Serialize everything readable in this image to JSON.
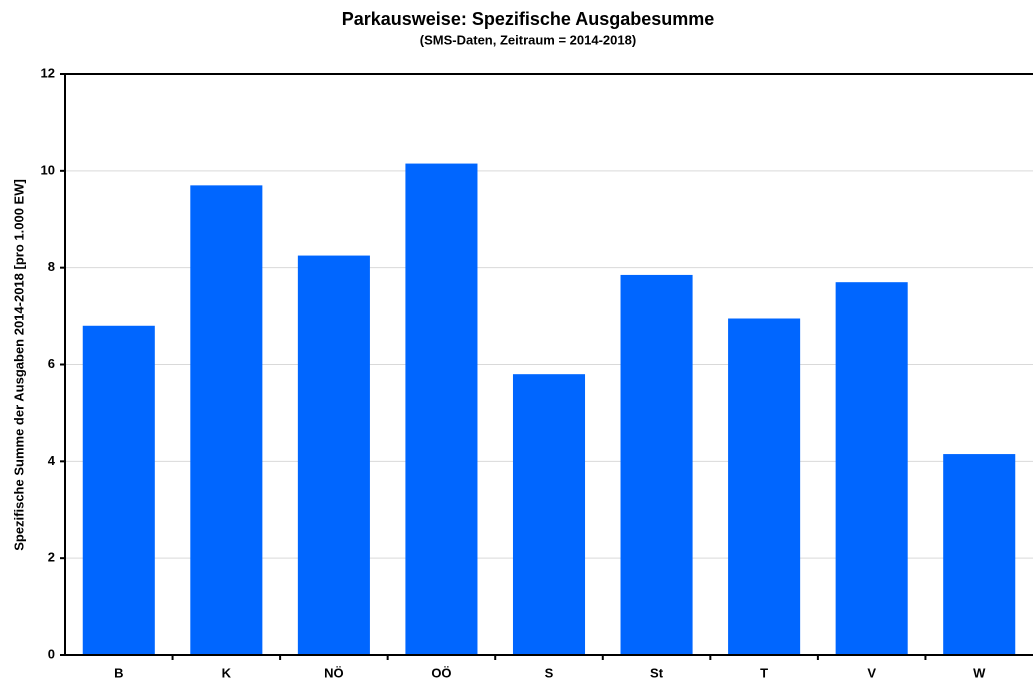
{
  "chart_data": {
    "type": "bar",
    "title": "Parkausweise: Spezifische Ausgabesumme",
    "subtitle": "(SMS-Daten, Zeitraum = 2014-2018)",
    "y_label": "Spezifische Summe der Ausgaben 2014-2018 [pro 1.000 EW]",
    "categories": [
      "B",
      "K",
      "NÖ",
      "OÖ",
      "S",
      "St",
      "T",
      "V",
      "W"
    ],
    "values": [
      6.8,
      9.7,
      8.25,
      10.15,
      5.8,
      7.85,
      6.95,
      7.7,
      4.15
    ],
    "color": "#0066ff",
    "ylim": [
      0,
      12
    ],
    "yticks": [
      0,
      2,
      4,
      6,
      8,
      10,
      12
    ],
    "grid": true
  }
}
